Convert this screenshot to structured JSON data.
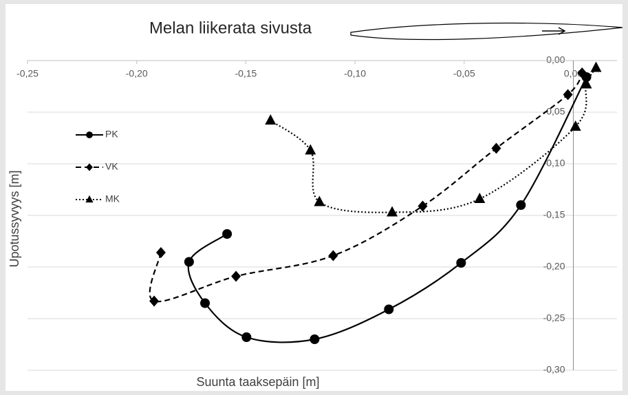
{
  "chart_data": {
    "type": "line",
    "title": "Melan liikerata sivusta",
    "x_label": "Suunta taaksepäin [m]",
    "y_label": "Upotussyvyys [m]",
    "xlim": [
      -0.25,
      0.02
    ],
    "ylim": [
      -0.3,
      0.0
    ],
    "xticks": [
      {
        "value": -0.25,
        "label": "-0,25"
      },
      {
        "value": -0.2,
        "label": "-0,20"
      },
      {
        "value": -0.15,
        "label": "-0,15"
      },
      {
        "value": -0.1,
        "label": "-0,10"
      },
      {
        "value": -0.05,
        "label": "-0,05"
      },
      {
        "value": 0,
        "label": "0,00"
      }
    ],
    "yticks": [
      {
        "value": 0,
        "label": "0,00"
      },
      {
        "value": -0.05,
        "label": "-0,05"
      },
      {
        "value": -0.1,
        "label": "-0,10"
      },
      {
        "value": -0.15,
        "label": "-0,15"
      },
      {
        "value": -0.2,
        "label": "-0,20"
      },
      {
        "value": -0.25,
        "label": "-0,25"
      },
      {
        "value": -0.3,
        "label": "-0,30"
      }
    ],
    "grid": true,
    "legend": "left",
    "series": [
      {
        "name": "PK",
        "color": "#000000",
        "line_style": "solid",
        "marker": "circle",
        "x": [
          -0.1586,
          -0.176,
          -0.1687,
          -0.1497,
          -0.1185,
          -0.0845,
          -0.0514,
          -0.024,
          0.006
        ],
        "values": [
          -0.168,
          -0.195,
          -0.235,
          -0.268,
          -0.27,
          -0.241,
          -0.196,
          -0.14,
          -0.016
        ]
      },
      {
        "name": "VK",
        "color": "#000000",
        "line_style": "dashed",
        "marker": "diamond",
        "x": [
          -0.1889,
          -0.192,
          -0.1545,
          -0.11,
          -0.069,
          -0.0353,
          -0.0025,
          0.004
        ],
        "values": [
          -0.186,
          -0.233,
          -0.209,
          -0.189,
          -0.141,
          -0.085,
          -0.033,
          -0.012
        ]
      },
      {
        "name": "MK",
        "color": "#000000",
        "line_style": "dotted",
        "marker": "triangle",
        "x": [
          -0.1387,
          -0.1204,
          -0.1163,
          -0.083,
          -0.0429,
          0.001,
          0.006,
          0.0104
        ],
        "values": [
          -0.058,
          -0.087,
          -0.137,
          -0.147,
          -0.134,
          -0.064,
          -0.023,
          -0.007
        ]
      }
    ]
  }
}
